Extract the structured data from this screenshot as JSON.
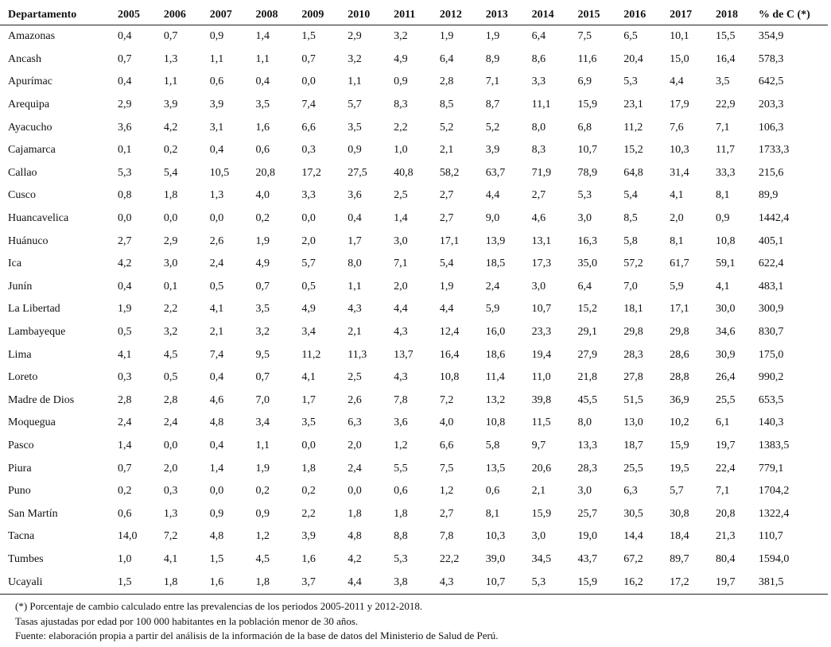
{
  "table": {
    "headers": [
      "Departamento",
      "2005",
      "2006",
      "2007",
      "2008",
      "2009",
      "2010",
      "2011",
      "2012",
      "2013",
      "2014",
      "2015",
      "2016",
      "2017",
      "2018",
      "% de C (*)"
    ],
    "rows": [
      [
        "Amazonas",
        "0,4",
        "0,7",
        "0,9",
        "1,4",
        "1,5",
        "2,9",
        "3,2",
        "1,9",
        "1,9",
        "6,4",
        "7,5",
        "6,5",
        "10,1",
        "15,5",
        "354,9"
      ],
      [
        "Ancash",
        "0,7",
        "1,3",
        "1,1",
        "1,1",
        "0,7",
        "3,2",
        "4,9",
        "6,4",
        "8,9",
        "8,6",
        "11,6",
        "20,4",
        "15,0",
        "16,4",
        "578,3"
      ],
      [
        "Apurímac",
        "0,4",
        "1,1",
        "0,6",
        "0,4",
        "0,0",
        "1,1",
        "0,9",
        "2,8",
        "7,1",
        "3,3",
        "6,9",
        "5,3",
        "4,4",
        "3,5",
        "642,5"
      ],
      [
        "Arequipa",
        "2,9",
        "3,9",
        "3,9",
        "3,5",
        "7,4",
        "5,7",
        "8,3",
        "8,5",
        "8,7",
        "11,1",
        "15,9",
        "23,1",
        "17,9",
        "22,9",
        "203,3"
      ],
      [
        "Ayacucho",
        "3,6",
        "4,2",
        "3,1",
        "1,6",
        "6,6",
        "3,5",
        "2,2",
        "5,2",
        "5,2",
        "8,0",
        "6,8",
        "11,2",
        "7,6",
        "7,1",
        "106,3"
      ],
      [
        "Cajamarca",
        "0,1",
        "0,2",
        "0,4",
        "0,6",
        "0,3",
        "0,9",
        "1,0",
        "2,1",
        "3,9",
        "8,3",
        "10,7",
        "15,2",
        "10,3",
        "11,7",
        "1733,3"
      ],
      [
        "Callao",
        "5,3",
        "5,4",
        "10,5",
        "20,8",
        "17,2",
        "27,5",
        "40,8",
        "58,2",
        "63,7",
        "71,9",
        "78,9",
        "64,8",
        "31,4",
        "33,3",
        "215,6"
      ],
      [
        "Cusco",
        "0,8",
        "1,8",
        "1,3",
        "4,0",
        "3,3",
        "3,6",
        "2,5",
        "2,7",
        "4,4",
        "2,7",
        "5,3",
        "5,4",
        "4,1",
        "8,1",
        "89,9"
      ],
      [
        "Huancavelica",
        "0,0",
        "0,0",
        "0,0",
        "0,2",
        "0,0",
        "0,4",
        "1,4",
        "2,7",
        "9,0",
        "4,6",
        "3,0",
        "8,5",
        "2,0",
        "0,9",
        "1442,4"
      ],
      [
        "Huánuco",
        "2,7",
        "2,9",
        "2,6",
        "1,9",
        "2,0",
        "1,7",
        "3,0",
        "17,1",
        "13,9",
        "13,1",
        "16,3",
        "5,8",
        "8,1",
        "10,8",
        "405,1"
      ],
      [
        "Ica",
        "4,2",
        "3,0",
        "2,4",
        "4,9",
        "5,7",
        "8,0",
        "7,1",
        "5,4",
        "18,5",
        "17,3",
        "35,0",
        "57,2",
        "61,7",
        "59,1",
        "622,4"
      ],
      [
        "Junín",
        "0,4",
        "0,1",
        "0,5",
        "0,7",
        "0,5",
        "1,1",
        "2,0",
        "1,9",
        "2,4",
        "3,0",
        "6,4",
        "7,0",
        "5,9",
        "4,1",
        "483,1"
      ],
      [
        "La Libertad",
        "1,9",
        "2,2",
        "4,1",
        "3,5",
        "4,9",
        "4,3",
        "4,4",
        "4,4",
        "5,9",
        "10,7",
        "15,2",
        "18,1",
        "17,1",
        "30,0",
        "300,9"
      ],
      [
        "Lambayeque",
        "0,5",
        "3,2",
        "2,1",
        "3,2",
        "3,4",
        "2,1",
        "4,3",
        "12,4",
        "16,0",
        "23,3",
        "29,1",
        "29,8",
        "29,8",
        "34,6",
        "830,7"
      ],
      [
        "Lima",
        "4,1",
        "4,5",
        "7,4",
        "9,5",
        "11,2",
        "11,3",
        "13,7",
        "16,4",
        "18,6",
        "19,4",
        "27,9",
        "28,3",
        "28,6",
        "30,9",
        "175,0"
      ],
      [
        "Loreto",
        "0,3",
        "0,5",
        "0,4",
        "0,7",
        "4,1",
        "2,5",
        "4,3",
        "10,8",
        "11,4",
        "11,0",
        "21,8",
        "27,8",
        "28,8",
        "26,4",
        "990,2"
      ],
      [
        "Madre de Dios",
        "2,8",
        "2,8",
        "4,6",
        "7,0",
        "1,7",
        "2,6",
        "7,8",
        "7,2",
        "13,2",
        "39,8",
        "45,5",
        "51,5",
        "36,9",
        "25,5",
        "653,5"
      ],
      [
        "Moquegua",
        "2,4",
        "2,4",
        "4,8",
        "3,4",
        "3,5",
        "6,3",
        "3,6",
        "4,0",
        "10,8",
        "11,5",
        "8,0",
        "13,0",
        "10,2",
        "6,1",
        "140,3"
      ],
      [
        "Pasco",
        "1,4",
        "0,0",
        "0,4",
        "1,1",
        "0,0",
        "2,0",
        "1,2",
        "6,6",
        "5,8",
        "9,7",
        "13,3",
        "18,7",
        "15,9",
        "19,7",
        "1383,5"
      ],
      [
        "Piura",
        "0,7",
        "2,0",
        "1,4",
        "1,9",
        "1,8",
        "2,4",
        "5,5",
        "7,5",
        "13,5",
        "20,6",
        "28,3",
        "25,5",
        "19,5",
        "22,4",
        "779,1"
      ],
      [
        "Puno",
        "0,2",
        "0,3",
        "0,0",
        "0,2",
        "0,2",
        "0,0",
        "0,6",
        "1,2",
        "0,6",
        "2,1",
        "3,0",
        "6,3",
        "5,7",
        "7,1",
        "1704,2"
      ],
      [
        "San Martín",
        "0,6",
        "1,3",
        "0,9",
        "0,9",
        "2,2",
        "1,8",
        "1,8",
        "2,7",
        "8,1",
        "15,9",
        "25,7",
        "30,5",
        "30,8",
        "20,8",
        "1322,4"
      ],
      [
        "Tacna",
        "14,0",
        "7,2",
        "4,8",
        "1,2",
        "3,9",
        "4,8",
        "8,8",
        "7,8",
        "10,3",
        "3,0",
        "19,0",
        "14,4",
        "18,4",
        "21,3",
        "110,7"
      ],
      [
        "Tumbes",
        "1,0",
        "4,1",
        "1,5",
        "4,5",
        "1,6",
        "4,2",
        "5,3",
        "22,2",
        "39,0",
        "34,5",
        "43,7",
        "67,2",
        "89,7",
        "80,4",
        "1594,0"
      ],
      [
        "Ucayali",
        "1,5",
        "1,8",
        "1,6",
        "1,8",
        "3,7",
        "4,4",
        "3,8",
        "4,3",
        "10,7",
        "5,3",
        "15,9",
        "16,2",
        "17,2",
        "19,7",
        "381,5"
      ]
    ]
  },
  "notes": [
    "(*) Porcentaje de cambio calculado entre las prevalencias de los periodos 2005-2011 y 2012-2018.",
    "Tasas ajustadas por edad por 100 000 habitantes en la población menor de 30 años.",
    "Fuente: elaboración propia a partir del análisis de la información de la base de datos del Ministerio de Salud de Perú."
  ]
}
